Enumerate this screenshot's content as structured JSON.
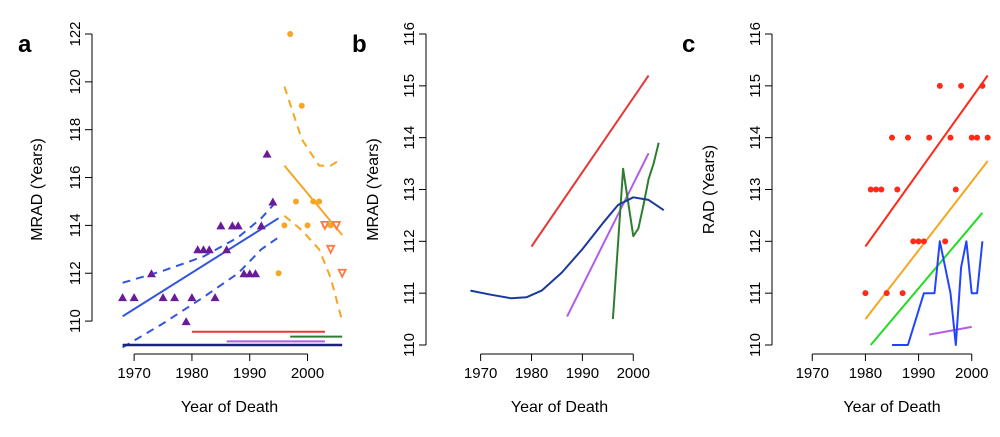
{
  "chart_data": [
    {
      "panel": "a",
      "type": "scatter",
      "xlabel": "Year of Death",
      "ylabel": "MRAD (Years)",
      "xlim": [
        1966,
        2007
      ],
      "ylim": [
        109,
        122
      ],
      "xticks": [
        1970,
        1980,
        1990,
        2000
      ],
      "yticks": [
        110,
        112,
        114,
        116,
        118,
        120,
        122
      ],
      "series": [
        {
          "kind": "points",
          "marker": "triangle",
          "color": "#6a1b9a",
          "points": [
            [
              1968,
              111
            ],
            [
              1970,
              111
            ],
            [
              1973,
              112
            ],
            [
              1975,
              111
            ],
            [
              1977,
              111
            ],
            [
              1979,
              110
            ],
            [
              1980,
              111
            ],
            [
              1981,
              113
            ],
            [
              1982,
              113
            ],
            [
              1983,
              113
            ],
            [
              1984,
              111
            ],
            [
              1985,
              114
            ],
            [
              1986,
              113
            ],
            [
              1987,
              114
            ],
            [
              1988,
              114
            ],
            [
              1989,
              112
            ],
            [
              1990,
              112
            ],
            [
              1991,
              112
            ],
            [
              1992,
              114
            ],
            [
              1993,
              117
            ],
            [
              1994,
              115
            ]
          ]
        },
        {
          "kind": "points",
          "marker": "dot",
          "color": "#f5a623",
          "points": [
            [
              1995,
              112
            ],
            [
              1996,
              114
            ],
            [
              1997,
              122
            ],
            [
              1998,
              115
            ],
            [
              1999,
              119
            ],
            [
              2000,
              114
            ],
            [
              2001,
              115
            ],
            [
              2002,
              115
            ],
            [
              2003,
              114
            ],
            [
              2004,
              114
            ]
          ]
        },
        {
          "kind": "points",
          "marker": "triangle-down",
          "color": "#ff7a45",
          "points": [
            [
              2003,
              114
            ],
            [
              2004,
              113
            ],
            [
              2005,
              114
            ],
            [
              2006,
              112
            ]
          ]
        },
        {
          "kind": "line",
          "color": "#3355dd",
          "width": 2,
          "points": [
            [
              1968,
              110.2
            ],
            [
              1995,
              114.3
            ]
          ]
        },
        {
          "kind": "line",
          "color": "#3355dd",
          "width": 2,
          "dash": "8,6",
          "points": [
            [
              1968,
              111.6
            ],
            [
              1975,
              112.1
            ],
            [
              1982,
              112.7
            ],
            [
              1988,
              113.5
            ],
            [
              1992,
              114.3
            ],
            [
              1995,
              115.1
            ]
          ]
        },
        {
          "kind": "line",
          "color": "#3355dd",
          "width": 2,
          "dash": "8,6",
          "points": [
            [
              1968,
              108.9
            ],
            [
              1975,
              109.9
            ],
            [
              1982,
              111.0
            ],
            [
              1988,
              112.0
            ],
            [
              1992,
              113.0
            ],
            [
              1995,
              113.5
            ]
          ]
        },
        {
          "kind": "line",
          "color": "#f5a623",
          "width": 2,
          "points": [
            [
              1996,
              116.5
            ],
            [
              2006,
              113.6
            ]
          ]
        },
        {
          "kind": "line",
          "color": "#f5a623",
          "width": 2,
          "dash": "8,6",
          "points": [
            [
              1996,
              119.8
            ],
            [
              1999,
              117.6
            ],
            [
              2002,
              116.5
            ],
            [
              2004,
              116.5
            ],
            [
              2006,
              116.8
            ]
          ]
        },
        {
          "kind": "line",
          "color": "#f5a623",
          "width": 2,
          "dash": "8,6",
          "points": [
            [
              1996,
              114.4
            ],
            [
              1999,
              113.8
            ],
            [
              2002,
              113.0
            ],
            [
              2004,
              111.8
            ],
            [
              2006,
              110.0
            ]
          ]
        },
        {
          "kind": "line",
          "color": "#e53935",
          "width": 2,
          "points": [
            [
              1980,
              109.55
            ],
            [
              2003,
              109.55
            ]
          ]
        },
        {
          "kind": "line",
          "color": "#2e7d32",
          "width": 2,
          "points": [
            [
              1997,
              109.35
            ],
            [
              2006,
              109.35
            ]
          ]
        },
        {
          "kind": "line",
          "color": "#b05ee8",
          "width": 2,
          "points": [
            [
              1986,
              109.15
            ],
            [
              2003,
              109.15
            ]
          ]
        },
        {
          "kind": "line",
          "color": "#1a237e",
          "width": 2.5,
          "points": [
            [
              1968,
              109.0
            ],
            [
              2006,
              109.0
            ]
          ]
        }
      ]
    },
    {
      "panel": "b",
      "type": "line",
      "xlabel": "Year of Death",
      "ylabel": "MRAD (Years)",
      "xlim": [
        1963,
        2008
      ],
      "ylim": [
        110,
        116
      ],
      "xticks": [
        1970,
        1980,
        1990,
        2000
      ],
      "yticks": [
        110,
        111,
        112,
        113,
        114,
        115,
        116
      ],
      "series": [
        {
          "kind": "line",
          "color": "#e53935",
          "width": 2,
          "points": [
            [
              1980,
              111.9
            ],
            [
              2003,
              115.2
            ]
          ]
        },
        {
          "kind": "line",
          "color": "#b05ee8",
          "width": 2,
          "points": [
            [
              1987,
              110.55
            ],
            [
              2003,
              113.7
            ]
          ]
        },
        {
          "kind": "line",
          "color": "#2e7d32",
          "width": 2,
          "points": [
            [
              1996,
              110.5
            ],
            [
              1998,
              113.4
            ],
            [
              2000,
              112.1
            ],
            [
              2001,
              112.25
            ],
            [
              2002,
              112.7
            ],
            [
              2003,
              113.2
            ],
            [
              2004,
              113.5
            ],
            [
              2005,
              113.9
            ]
          ]
        },
        {
          "kind": "line",
          "color": "#1a3a9a",
          "width": 2,
          "points": [
            [
              1968,
              111.05
            ],
            [
              1972,
              110.97
            ],
            [
              1976,
              110.9
            ],
            [
              1979,
              110.92
            ],
            [
              1982,
              111.05
            ],
            [
              1986,
              111.4
            ],
            [
              1990,
              111.85
            ],
            [
              1994,
              112.35
            ],
            [
              1997,
              112.7
            ],
            [
              2000,
              112.85
            ],
            [
              2003,
              112.8
            ],
            [
              2006,
              112.6
            ]
          ]
        }
      ]
    },
    {
      "panel": "c",
      "type": "scatter",
      "xlabel": "Year of Death",
      "ylabel": "RAD (Years)",
      "xlim": [
        1966,
        2004
      ],
      "ylim": [
        110,
        116
      ],
      "xticks": [
        1970,
        1980,
        1990,
        2000
      ],
      "yticks": [
        110,
        111,
        112,
        113,
        114,
        115,
        116
      ],
      "series": [
        {
          "kind": "points",
          "marker": "dot",
          "color": "#ff2a1a",
          "points": [
            [
              1980,
              111
            ],
            [
              1981,
              113
            ],
            [
              1982,
              113
            ],
            [
              1983,
              113
            ],
            [
              1984,
              111
            ],
            [
              1985,
              114
            ],
            [
              1986,
              113
            ],
            [
              1987,
              111
            ],
            [
              1988,
              114
            ],
            [
              1989,
              112
            ],
            [
              1990,
              112
            ],
            [
              1991,
              112
            ],
            [
              1992,
              114
            ],
            [
              1994,
              115
            ],
            [
              1995,
              112
            ],
            [
              1996,
              114
            ],
            [
              1997,
              113
            ],
            [
              1998,
              115
            ],
            [
              2000,
              114
            ],
            [
              2001,
              114
            ],
            [
              2002,
              115
            ],
            [
              2003,
              114
            ]
          ]
        },
        {
          "kind": "line",
          "color": "#ff2a1a",
          "width": 2,
          "points": [
            [
              1980,
              111.9
            ],
            [
              2003,
              115.2
            ]
          ]
        },
        {
          "kind": "line",
          "color": "#f5a623",
          "width": 2,
          "points": [
            [
              1980,
              110.5
            ],
            [
              2003,
              113.55
            ]
          ]
        },
        {
          "kind": "line",
          "color": "#22dd22",
          "width": 2,
          "points": [
            [
              1981,
              110.0
            ],
            [
              2002,
              112.55
            ]
          ]
        },
        {
          "kind": "line",
          "color": "#b05ee8",
          "width": 2,
          "points": [
            [
              1992,
              110.2
            ],
            [
              2000,
              110.35
            ]
          ]
        },
        {
          "kind": "line",
          "color": "#2244ff",
          "width": 2,
          "points": [
            [
              1985,
              110
            ],
            [
              1988,
              110
            ],
            [
              1991,
              111
            ],
            [
              1993,
              111
            ],
            [
              1994,
              112
            ],
            [
              1995,
              111.5
            ],
            [
              1996,
              111
            ],
            [
              1997,
              110
            ],
            [
              1998,
              111.5
            ],
            [
              1999,
              112
            ],
            [
              2000,
              111
            ],
            [
              2001,
              111
            ],
            [
              2002,
              112
            ]
          ]
        }
      ]
    }
  ]
}
